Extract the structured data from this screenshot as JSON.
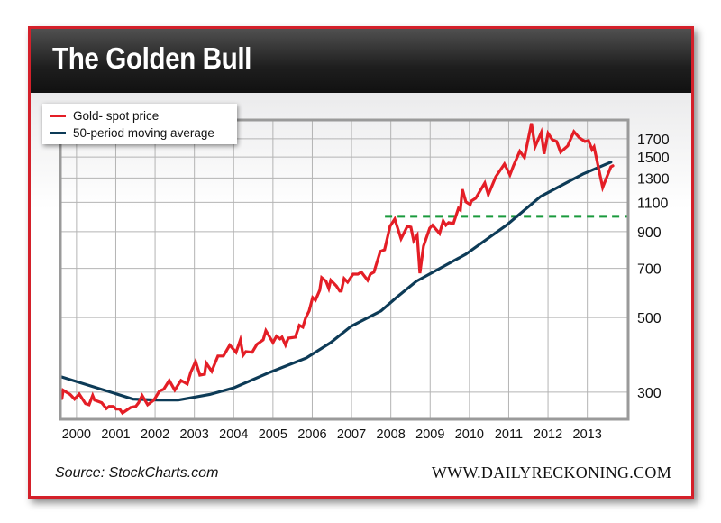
{
  "header": {
    "title": "The Golden Bull"
  },
  "footer": {
    "source": "Source: StockCharts.com",
    "site": "WWW.DAILYRECKONING.COM"
  },
  "colors": {
    "gold": "#e41e26",
    "ma": "#0d3b57",
    "resistance": "#1a9a3c",
    "grid": "#b4b4b4",
    "frame": "#9a9a9a"
  },
  "chart_data": {
    "type": "line",
    "title": "The Golden Bull",
    "xlabel": "",
    "ylabel": "",
    "yscale": "log",
    "xlim": [
      1999.59,
      2014.04
    ],
    "ylim": [
      249,
      1934
    ],
    "x_ticks": [
      "2000",
      "2001",
      "2002",
      "2003",
      "2004",
      "2005",
      "2006",
      "2007",
      "2008",
      "2009",
      "2010",
      "2011",
      "2012",
      "2013"
    ],
    "y_ticks": [
      "300",
      "500",
      "700",
      "900",
      "1100",
      "1300",
      "1500",
      "1700"
    ],
    "grid": true,
    "legend_position": "top-left",
    "legend": [
      "Gold- spot price",
      "50-period moving average"
    ],
    "series": [
      {
        "name": "Gold- spot price",
        "points": [
          [
            1999.63,
            287
          ],
          [
            1999.66,
            304
          ],
          [
            1999.84,
            295
          ],
          [
            1999.95,
            286
          ],
          [
            2000.07,
            296
          ],
          [
            2000.23,
            277
          ],
          [
            2000.32,
            275
          ],
          [
            2000.41,
            293
          ],
          [
            2000.46,
            284
          ],
          [
            2000.64,
            279
          ],
          [
            2000.76,
            268
          ],
          [
            2000.83,
            272
          ],
          [
            2000.94,
            272
          ],
          [
            2001.01,
            267
          ],
          [
            2001.1,
            267
          ],
          [
            2001.17,
            260
          ],
          [
            2001.38,
            270
          ],
          [
            2001.51,
            272
          ],
          [
            2001.58,
            279
          ],
          [
            2001.67,
            293
          ],
          [
            2001.81,
            275
          ],
          [
            2001.97,
            284
          ],
          [
            2002.11,
            302
          ],
          [
            2002.22,
            306
          ],
          [
            2002.36,
            325
          ],
          [
            2002.5,
            304
          ],
          [
            2002.66,
            325
          ],
          [
            2002.82,
            317
          ],
          [
            2002.91,
            344
          ],
          [
            2003.03,
            370
          ],
          [
            2003.14,
            337
          ],
          [
            2003.26,
            339
          ],
          [
            2003.3,
            366
          ],
          [
            2003.44,
            346
          ],
          [
            2003.6,
            384
          ],
          [
            2003.74,
            384
          ],
          [
            2003.9,
            414
          ],
          [
            2004.06,
            394
          ],
          [
            2004.17,
            429
          ],
          [
            2004.24,
            386
          ],
          [
            2004.31,
            396
          ],
          [
            2004.47,
            394
          ],
          [
            2004.59,
            416
          ],
          [
            2004.75,
            429
          ],
          [
            2004.82,
            457
          ],
          [
            2005.0,
            421
          ],
          [
            2005.09,
            440
          ],
          [
            2005.18,
            432
          ],
          [
            2005.23,
            437
          ],
          [
            2005.32,
            414
          ],
          [
            2005.39,
            434
          ],
          [
            2005.57,
            437
          ],
          [
            2005.67,
            474
          ],
          [
            2005.76,
            468
          ],
          [
            2005.83,
            498
          ],
          [
            2005.92,
            523
          ],
          [
            2006.01,
            573
          ],
          [
            2006.08,
            563
          ],
          [
            2006.19,
            603
          ],
          [
            2006.24,
            657
          ],
          [
            2006.35,
            641
          ],
          [
            2006.42,
            610
          ],
          [
            2006.47,
            645
          ],
          [
            2006.61,
            621
          ],
          [
            2006.7,
            599
          ],
          [
            2006.74,
            599
          ],
          [
            2006.81,
            653
          ],
          [
            2006.9,
            637
          ],
          [
            2007.04,
            673
          ],
          [
            2007.16,
            673
          ],
          [
            2007.25,
            682
          ],
          [
            2007.41,
            645
          ],
          [
            2007.48,
            673
          ],
          [
            2007.57,
            682
          ],
          [
            2007.73,
            786
          ],
          [
            2007.84,
            795
          ],
          [
            2007.98,
            934
          ],
          [
            2008.1,
            981
          ],
          [
            2008.26,
            857
          ],
          [
            2008.42,
            934
          ],
          [
            2008.51,
            928
          ],
          [
            2008.58,
            846
          ],
          [
            2008.67,
            878
          ],
          [
            2008.74,
            677
          ],
          [
            2008.83,
            815
          ],
          [
            2008.99,
            922
          ],
          [
            2009.06,
            940
          ],
          [
            2009.24,
            889
          ],
          [
            2009.33,
            969
          ],
          [
            2009.4,
            940
          ],
          [
            2009.47,
            957
          ],
          [
            2009.59,
            951
          ],
          [
            2009.72,
            1056
          ],
          [
            2009.77,
            1044
          ],
          [
            2009.82,
            1203
          ],
          [
            2009.91,
            1103
          ],
          [
            2010.02,
            1083
          ],
          [
            2010.05,
            1110
          ],
          [
            2010.16,
            1131
          ],
          [
            2010.39,
            1256
          ],
          [
            2010.48,
            1159
          ],
          [
            2010.67,
            1311
          ],
          [
            2010.89,
            1430
          ],
          [
            2011.03,
            1328
          ],
          [
            2011.12,
            1413
          ],
          [
            2011.28,
            1560
          ],
          [
            2011.4,
            1495
          ],
          [
            2011.58,
            1890
          ],
          [
            2011.67,
            1609
          ],
          [
            2011.83,
            1776
          ],
          [
            2011.9,
            1532
          ],
          [
            2012.0,
            1765
          ],
          [
            2012.11,
            1689
          ],
          [
            2012.22,
            1669
          ],
          [
            2012.32,
            1551
          ],
          [
            2012.5,
            1619
          ],
          [
            2012.66,
            1786
          ],
          [
            2012.8,
            1710
          ],
          [
            2012.94,
            1669
          ],
          [
            2013.03,
            1679
          ],
          [
            2013.12,
            1578
          ],
          [
            2013.17,
            1609
          ],
          [
            2013.39,
            1218
          ],
          [
            2013.6,
            1403
          ],
          [
            2013.65,
            1413
          ]
        ]
      },
      {
        "name": "50-period moving average",
        "points": [
          [
            1999.61,
            333
          ],
          [
            2001.44,
            286
          ],
          [
            2002.06,
            284
          ],
          [
            2002.59,
            284
          ],
          [
            2003.39,
            295
          ],
          [
            2004.01,
            309
          ],
          [
            2004.93,
            344
          ],
          [
            2005.85,
            379
          ],
          [
            2006.47,
            421
          ],
          [
            2006.99,
            471
          ],
          [
            2007.75,
            523
          ],
          [
            2008.14,
            573
          ],
          [
            2008.65,
            641
          ],
          [
            2009.91,
            771
          ],
          [
            2010.94,
            940
          ],
          [
            2011.81,
            1145
          ],
          [
            2012.89,
            1336
          ],
          [
            2013.6,
            1449
          ]
        ]
      }
    ],
    "annotations": [
      {
        "type": "horizontal-dashed-line",
        "value": 1000,
        "from_x": 2007.85
      }
    ]
  }
}
